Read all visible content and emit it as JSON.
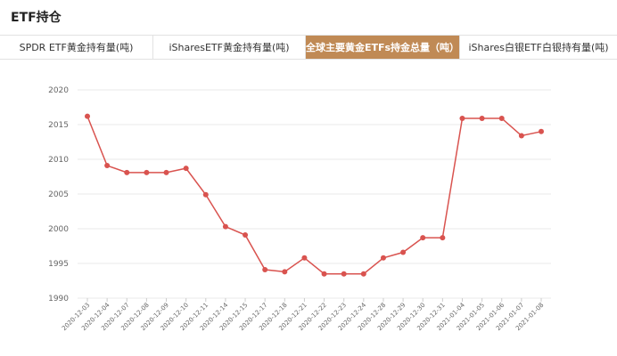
{
  "header": {
    "title": "ETF持仓"
  },
  "tabs": [
    {
      "label": "SPDR ETF黄金持有量(吨)",
      "active": false
    },
    {
      "label": "iSharesETF黄金持有量(吨)",
      "active": false
    },
    {
      "label": "全球主要黄金ETFs持金总量（吨）",
      "active": true
    },
    {
      "label": "iShares白银ETF白银持有量(吨)",
      "active": false
    }
  ],
  "colors": {
    "accent": "#c08a55",
    "line": "#d9534f"
  },
  "chart_data": {
    "type": "line",
    "title": "",
    "xlabel": "",
    "ylabel": "",
    "ylim": [
      1990,
      2020
    ],
    "yticks": [
      1990,
      1995,
      2000,
      2005,
      2010,
      2015,
      2020
    ],
    "grid": true,
    "categories": [
      "2020-12-03",
      "2020-12-04",
      "2020-12-07",
      "2020-12-08",
      "2020-12-09",
      "2020-12-10",
      "2020-12-11",
      "2020-12-14",
      "2020-12-15",
      "2020-12-17",
      "2020-12-18",
      "2020-12-21",
      "2020-12-22",
      "2020-12-23",
      "2020-12-24",
      "2020-12-28",
      "2020-12-29",
      "2020-12-30",
      "2020-12-31",
      "2021-01-04",
      "2021-01-05",
      "2021-01-06",
      "2021-01-07",
      "2021-01-08"
    ],
    "series": [
      {
        "values": [
          2016.2,
          2009.1,
          2008.1,
          2008.1,
          2008.1,
          2008.7,
          2004.9,
          2000.3,
          1999.1,
          1994.1,
          1993.8,
          1995.8,
          1993.5,
          1993.5,
          1993.5,
          1995.8,
          1996.6,
          1998.7,
          1998.7,
          2015.9,
          2015.9,
          2015.9,
          2013.4,
          2014.0
        ]
      }
    ]
  }
}
